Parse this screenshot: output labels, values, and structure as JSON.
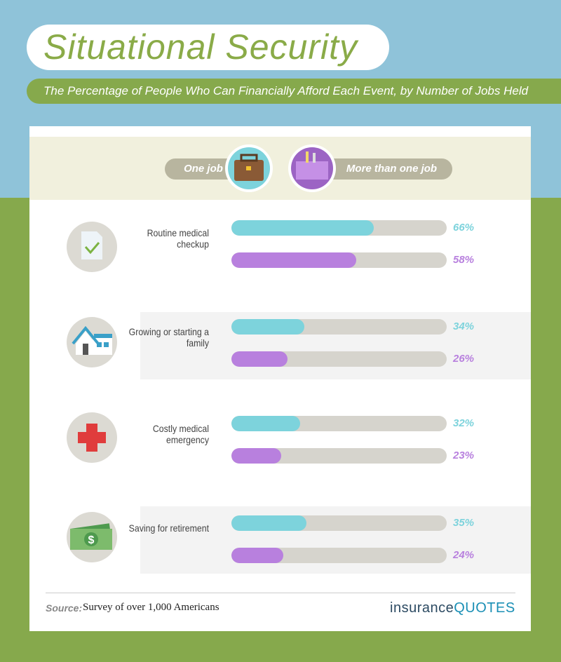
{
  "chart_data": {
    "type": "bar",
    "orientation": "horizontal",
    "title": "Situational Security",
    "subtitle": "The Percentage of People Who Can Financially Afford Each Event, by Number of Jobs Held",
    "categories": [
      "Routine medical checkup",
      "Growing or starting a family",
      "Costly medical emergency",
      "Saving for retirement"
    ],
    "series": [
      {
        "name": "One job",
        "color": "#7dd3dc",
        "values": [
          66,
          34,
          32,
          35
        ],
        "value_labels": [
          "66%",
          "34%",
          "32%",
          "35%"
        ]
      },
      {
        "name": "More than one job",
        "color": "#b880de",
        "values": [
          58,
          26,
          23,
          24
        ],
        "value_labels": [
          "58%",
          "26%",
          "23%",
          "24%"
        ]
      }
    ],
    "xlim": [
      0,
      100
    ]
  },
  "source_label": "Source:",
  "source": "Survey of over 1,000 Americans",
  "brand": [
    "insurance",
    "QUOTES"
  ]
}
